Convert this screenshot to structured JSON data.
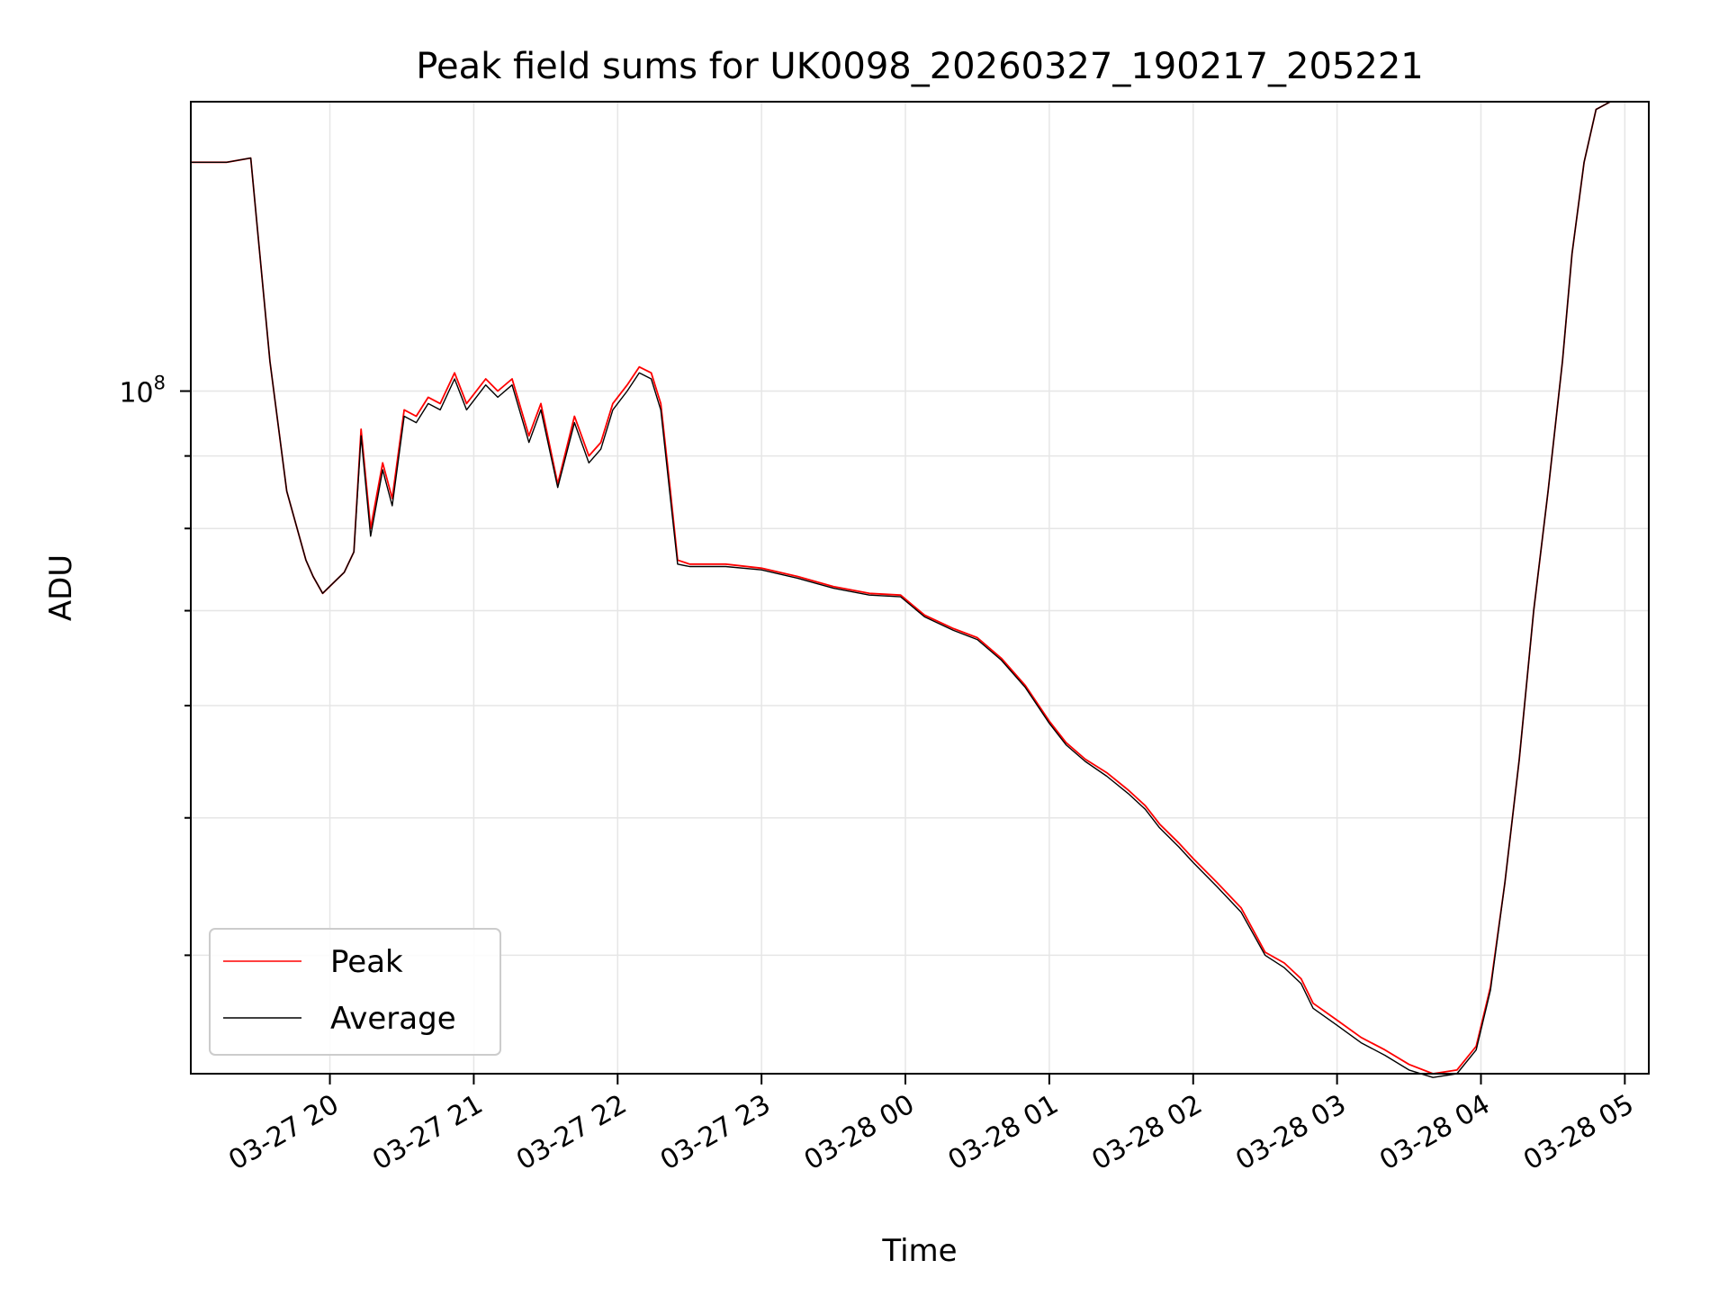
{
  "chart_data": {
    "type": "line",
    "title": "Peak field sums for UK0098_20260327_190217_205221",
    "xlabel": "Time",
    "ylabel": "ADU",
    "y_scale": "log",
    "grid": true,
    "legend_position": "lower-left",
    "x_range": [
      "03-27 19:02",
      "03-28 05:10"
    ],
    "ylim": [
      33000000,
      160000000
    ],
    "x_ticks": [
      "03-27 20",
      "03-27 21",
      "03-27 22",
      "03-27 23",
      "03-28 00",
      "03-28 01",
      "03-28 02",
      "03-28 03",
      "03-28 04",
      "03-28 05"
    ],
    "y_ticks": [
      {
        "value": 100000000,
        "base": "10",
        "exponent": "8"
      }
    ],
    "y_minor_ticks": [
      40000000,
      50000000,
      60000000,
      70000000,
      80000000,
      90000000
    ],
    "series": [
      {
        "name": "Peak",
        "color": "#ff0000",
        "x": [
          "03-27 19:02",
          "03-27 19:17",
          "03-27 19:27",
          "03-27 19:35",
          "03-27 19:42",
          "03-27 19:50",
          "03-27 19:53",
          "03-27 19:57",
          "03-27 20:06",
          "03-27 20:10",
          "03-27 20:13",
          "03-27 20:17",
          "03-27 20:22",
          "03-27 20:26",
          "03-27 20:31",
          "03-27 20:36",
          "03-27 20:41",
          "03-27 20:46",
          "03-27 20:52",
          "03-27 20:57",
          "03-27 21:05",
          "03-27 21:10",
          "03-27 21:16",
          "03-27 21:23",
          "03-27 21:28",
          "03-27 21:35",
          "03-27 21:42",
          "03-27 21:48",
          "03-27 21:53",
          "03-27 21:58",
          "03-27 22:04",
          "03-27 22:09",
          "03-27 22:14",
          "03-27 22:18",
          "03-27 22:22",
          "03-27 22:25",
          "03-27 22:30",
          "03-27 22:45",
          "03-27 23:00",
          "03-27 23:15",
          "03-27 23:30",
          "03-27 23:45",
          "03-27 23:58",
          "03-28 00:08",
          "03-28 00:20",
          "03-28 00:30",
          "03-28 00:40",
          "03-28 00:50",
          "03-28 01:00",
          "03-28 01:07",
          "03-28 01:15",
          "03-28 01:24",
          "03-28 01:33",
          "03-28 01:40",
          "03-28 01:46",
          "03-28 01:54",
          "03-28 02:00",
          "03-28 02:10",
          "03-28 02:20",
          "03-28 02:30",
          "03-28 02:38",
          "03-28 02:45",
          "03-28 02:50",
          "03-28 03:00",
          "03-28 03:10",
          "03-28 03:20",
          "03-28 03:30",
          "03-28 03:40",
          "03-28 03:50",
          "03-28 03:58",
          "03-28 04:04",
          "03-28 04:10",
          "03-28 04:16",
          "03-28 04:22",
          "03-28 04:28",
          "03-28 04:34",
          "03-28 04:38",
          "03-28 04:43",
          "03-28 04:48",
          "03-28 04:54",
          "03-28 05:01",
          "03-28 05:05"
        ],
        "y": [
          145000000,
          145000000,
          146000000,
          105000000,
          85000000,
          76000000,
          74000000,
          72000000,
          74500000,
          77000000,
          94000000,
          80000000,
          89000000,
          84000000,
          97000000,
          96000000,
          99000000,
          98000000,
          103000000,
          98000000,
          102000000,
          100000000,
          102000000,
          93000000,
          98000000,
          86000000,
          96000000,
          90000000,
          92000000,
          98000000,
          101000000,
          104000000,
          103000000,
          98000000,
          85000000,
          76000000,
          75500000,
          75500000,
          75000000,
          74000000,
          72800000,
          72000000,
          71800000,
          69500000,
          68000000,
          67000000,
          64800000,
          62000000,
          58500000,
          56500000,
          55000000,
          53800000,
          52300000,
          51000000,
          49500000,
          48000000,
          46800000,
          45000000,
          43200000,
          40200000,
          39500000,
          38500000,
          37000000,
          36000000,
          35000000,
          34300000,
          33500000,
          33000000,
          33200000,
          34500000,
          38000000,
          45000000,
          55000000,
          70000000,
          85000000,
          105000000,
          125000000,
          145000000,
          158000000,
          160000000,
          160000000,
          160000000
        ]
      },
      {
        "name": "Average",
        "color": "#000000",
        "x": [
          "03-27 19:02",
          "03-27 19:17",
          "03-27 19:27",
          "03-27 19:35",
          "03-27 19:42",
          "03-27 19:50",
          "03-27 19:53",
          "03-27 19:57",
          "03-27 20:06",
          "03-27 20:10",
          "03-27 20:13",
          "03-27 20:17",
          "03-27 20:22",
          "03-27 20:26",
          "03-27 20:31",
          "03-27 20:36",
          "03-27 20:41",
          "03-27 20:46",
          "03-27 20:52",
          "03-27 20:57",
          "03-27 21:05",
          "03-27 21:10",
          "03-27 21:16",
          "03-27 21:23",
          "03-27 21:28",
          "03-27 21:35",
          "03-27 21:42",
          "03-27 21:48",
          "03-27 21:53",
          "03-27 21:58",
          "03-27 22:04",
          "03-27 22:09",
          "03-27 22:14",
          "03-27 22:18",
          "03-27 22:22",
          "03-27 22:25",
          "03-27 22:30",
          "03-27 22:45",
          "03-27 23:00",
          "03-27 23:15",
          "03-27 23:30",
          "03-27 23:45",
          "03-27 23:58",
          "03-28 00:08",
          "03-28 00:20",
          "03-28 00:30",
          "03-28 00:40",
          "03-28 00:50",
          "03-28 01:00",
          "03-28 01:07",
          "03-28 01:15",
          "03-28 01:24",
          "03-28 01:33",
          "03-28 01:40",
          "03-28 01:46",
          "03-28 01:54",
          "03-28 02:00",
          "03-28 02:10",
          "03-28 02:20",
          "03-28 02:30",
          "03-28 02:38",
          "03-28 02:45",
          "03-28 02:50",
          "03-28 03:00",
          "03-28 03:10",
          "03-28 03:20",
          "03-28 03:30",
          "03-28 03:40",
          "03-28 03:50",
          "03-28 03:58",
          "03-28 04:04",
          "03-28 04:10",
          "03-28 04:16",
          "03-28 04:22",
          "03-28 04:28",
          "03-28 04:34",
          "03-28 04:38",
          "03-28 04:43",
          "03-28 04:48",
          "03-28 04:54",
          "03-28 05:01",
          "03-28 05:05"
        ],
        "y": [
          145000000,
          145000000,
          146000000,
          105000000,
          85000000,
          76000000,
          74000000,
          72000000,
          74500000,
          77000000,
          93000000,
          79000000,
          88000000,
          83000000,
          96000000,
          95000000,
          98000000,
          97000000,
          102000000,
          97000000,
          101000000,
          99000000,
          101000000,
          92000000,
          97000000,
          85500000,
          95000000,
          89000000,
          91000000,
          97000000,
          100000000,
          103000000,
          102000000,
          97000000,
          84000000,
          75500000,
          75200000,
          75200000,
          74800000,
          73800000,
          72600000,
          71800000,
          71600000,
          69300000,
          67800000,
          66800000,
          64600000,
          61800000,
          58300000,
          56300000,
          54800000,
          53500000,
          52000000,
          50700000,
          49200000,
          47700000,
          46500000,
          44700000,
          42900000,
          40000000,
          39200000,
          38200000,
          36700000,
          35700000,
          34700000,
          34000000,
          33200000,
          32800000,
          33000000,
          34300000,
          37800000,
          45000000,
          55000000,
          70000000,
          85000000,
          105000000,
          125000000,
          145000000,
          158000000,
          160000000,
          160000000,
          160000000
        ]
      }
    ]
  }
}
